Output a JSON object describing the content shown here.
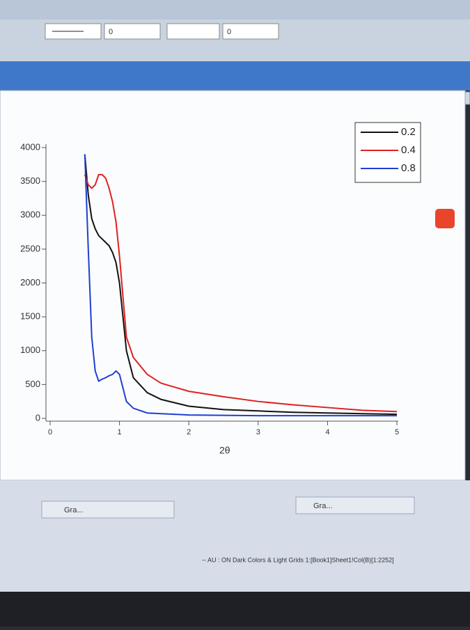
{
  "toolbar": {
    "line_width_field": "0",
    "border_field": "0"
  },
  "tabs": [
    "Gra...",
    "Gra..."
  ],
  "status_bar": "-- AU : ON  Dark Colors & Light Grids  1:[Book1]Sheet1!Col(B)[1:2252]",
  "chart_data": {
    "type": "line",
    "x_label": "2θ",
    "x": [
      0.5,
      0.55,
      0.6,
      0.65,
      0.7,
      0.75,
      0.8,
      0.85,
      0.9,
      0.95,
      1.0,
      1.05,
      1.1,
      1.2,
      1.4,
      1.6,
      2,
      2.5,
      3,
      3.5,
      4,
      4.5,
      5
    ],
    "series": [
      {
        "name": "0.2",
        "color": "#111111",
        "values": [
          3900,
          3300,
          2950,
          2800,
          2700,
          2650,
          2600,
          2550,
          2450,
          2300,
          2000,
          1500,
          1000,
          600,
          380,
          280,
          180,
          130,
          110,
          90,
          80,
          70,
          60
        ]
      },
      {
        "name": "0.4",
        "color": "#e02020",
        "values": [
          3600,
          3450,
          3400,
          3450,
          3600,
          3600,
          3550,
          3400,
          3200,
          2900,
          2400,
          1800,
          1200,
          900,
          650,
          520,
          400,
          320,
          250,
          200,
          160,
          120,
          100
        ]
      },
      {
        "name": "0.8",
        "color": "#1f3fd0",
        "values": [
          3900,
          2500,
          1200,
          700,
          550,
          580,
          600,
          630,
          650,
          700,
          650,
          450,
          250,
          150,
          80,
          70,
          50,
          45,
          40,
          40,
          40,
          40,
          40
        ]
      }
    ],
    "xlim": [
      0,
      5
    ],
    "xticks": [
      0,
      1,
      2,
      3,
      4,
      5
    ],
    "ylim": [
      0,
      4000
    ],
    "yticks": [
      0,
      500,
      1000,
      1500,
      2000,
      2500,
      3000,
      3500,
      4000
    ],
    "legend": "upper right"
  }
}
